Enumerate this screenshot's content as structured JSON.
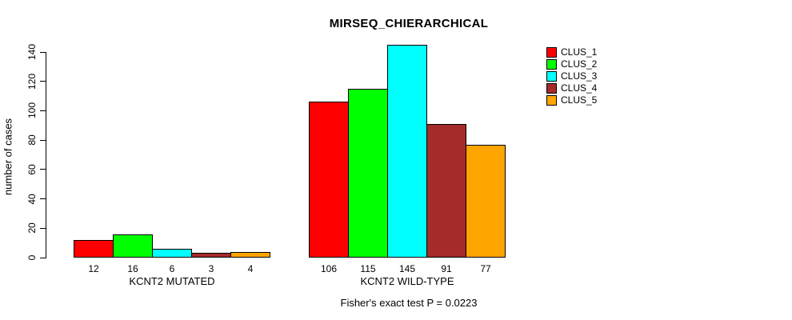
{
  "chart_data": {
    "type": "bar",
    "title": "MIRSEQ_CHIERARCHICAL",
    "ylabel": "number of cases",
    "xlabel": "",
    "ylim": [
      0,
      140
    ],
    "yticks": [
      0,
      20,
      40,
      60,
      80,
      100,
      120,
      140
    ],
    "grid": false,
    "legend_position": "top-right",
    "groups": [
      {
        "label": "KCNT2 MUTATED",
        "values": [
          12,
          16,
          6,
          3,
          4
        ]
      },
      {
        "label": "KCNT2 WILD-TYPE",
        "values": [
          106,
          115,
          145,
          91,
          77
        ]
      }
    ],
    "series_colors": [
      "#ff0000",
      "#00ff00",
      "#00ffff",
      "#a52a2a",
      "#ffa500"
    ],
    "legend": [
      {
        "label": "CLUS_1",
        "color": "#ff0000"
      },
      {
        "label": "CLUS_2",
        "color": "#00ff00"
      },
      {
        "label": "CLUS_3",
        "color": "#00ffff"
      },
      {
        "label": "CLUS_4",
        "color": "#a52a2a"
      },
      {
        "label": "CLUS_5",
        "color": "#ffa500"
      }
    ],
    "bar_border_color": "#000000",
    "annotation": "Fisher's exact test P = 0.0223"
  }
}
